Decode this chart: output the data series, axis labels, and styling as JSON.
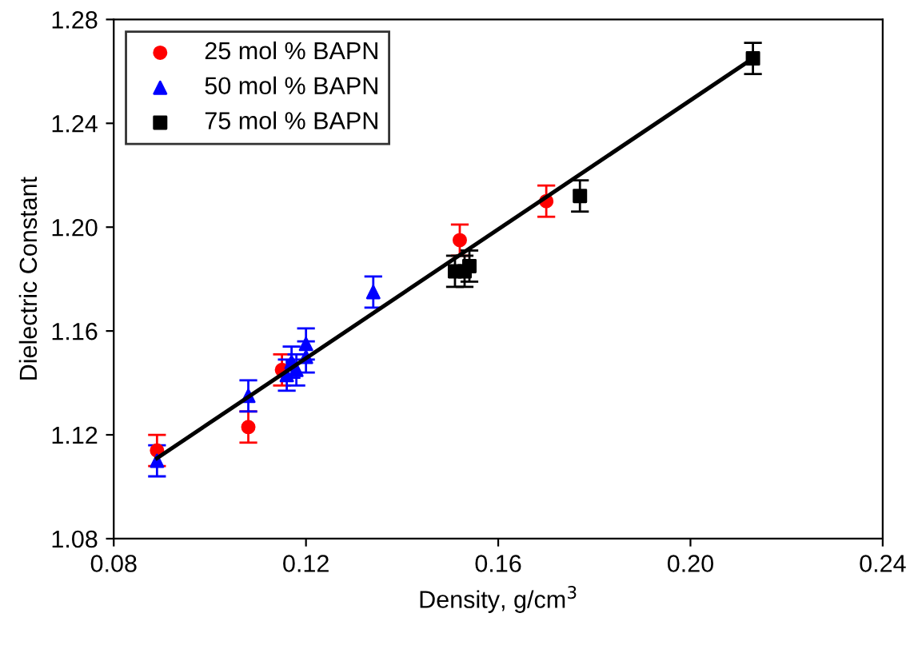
{
  "chart_data": {
    "type": "scatter",
    "xlabel": "Density, g/cm$^{3}$",
    "ylabel": "Dielectric Constant",
    "xlim": [
      0.08,
      0.24
    ],
    "xticks": [
      0.08,
      0.12,
      0.16,
      {
        "value": 0.2,
        "label": "0.20"
      },
      0.24
    ],
    "ylim": [
      1.08,
      1.28
    ],
    "yticks": [
      1.08,
      1.12,
      1.16,
      {
        "value": 1.2,
        "label": "1.20"
      },
      1.24,
      1.28
    ],
    "legend": "top left",
    "grid": false,
    "series": [
      {
        "name": "25 mol % BAPN",
        "color": "#ff0000",
        "marker": "circle",
        "x": [
          0.089,
          0.108,
          0.115,
          0.152,
          0.17
        ],
        "values": [
          1.114,
          1.123,
          1.145,
          1.195,
          1.21
        ],
        "errors": [
          0.006,
          0.006,
          0.006,
          0.006,
          0.006
        ]
      },
      {
        "name": "50 mol % BAPN",
        "color": "#0000ff",
        "marker": "triangle",
        "x": [
          0.089,
          0.108,
          0.116,
          0.117,
          0.118,
          0.12,
          0.12,
          0.134
        ],
        "values": [
          1.11,
          1.135,
          1.143,
          1.148,
          1.145,
          1.15,
          1.155,
          1.175
        ],
        "errors": [
          0.006,
          0.006,
          0.006,
          0.006,
          0.006,
          0.006,
          0.006,
          0.006
        ]
      },
      {
        "name": "75 mol % BAPN",
        "color": "#000000",
        "marker": "square",
        "x": [
          0.151,
          0.153,
          0.154,
          0.177,
          0.213
        ],
        "values": [
          1.183,
          1.183,
          1.185,
          1.212,
          1.265
        ],
        "errors": [
          0.006,
          0.006,
          0.006,
          0.006,
          0.006
        ]
      },
      {
        "type": "line",
        "color": "#000000",
        "x": [
          0.089,
          0.213
        ],
        "values": [
          1.111,
          1.265
        ]
      }
    ]
  }
}
